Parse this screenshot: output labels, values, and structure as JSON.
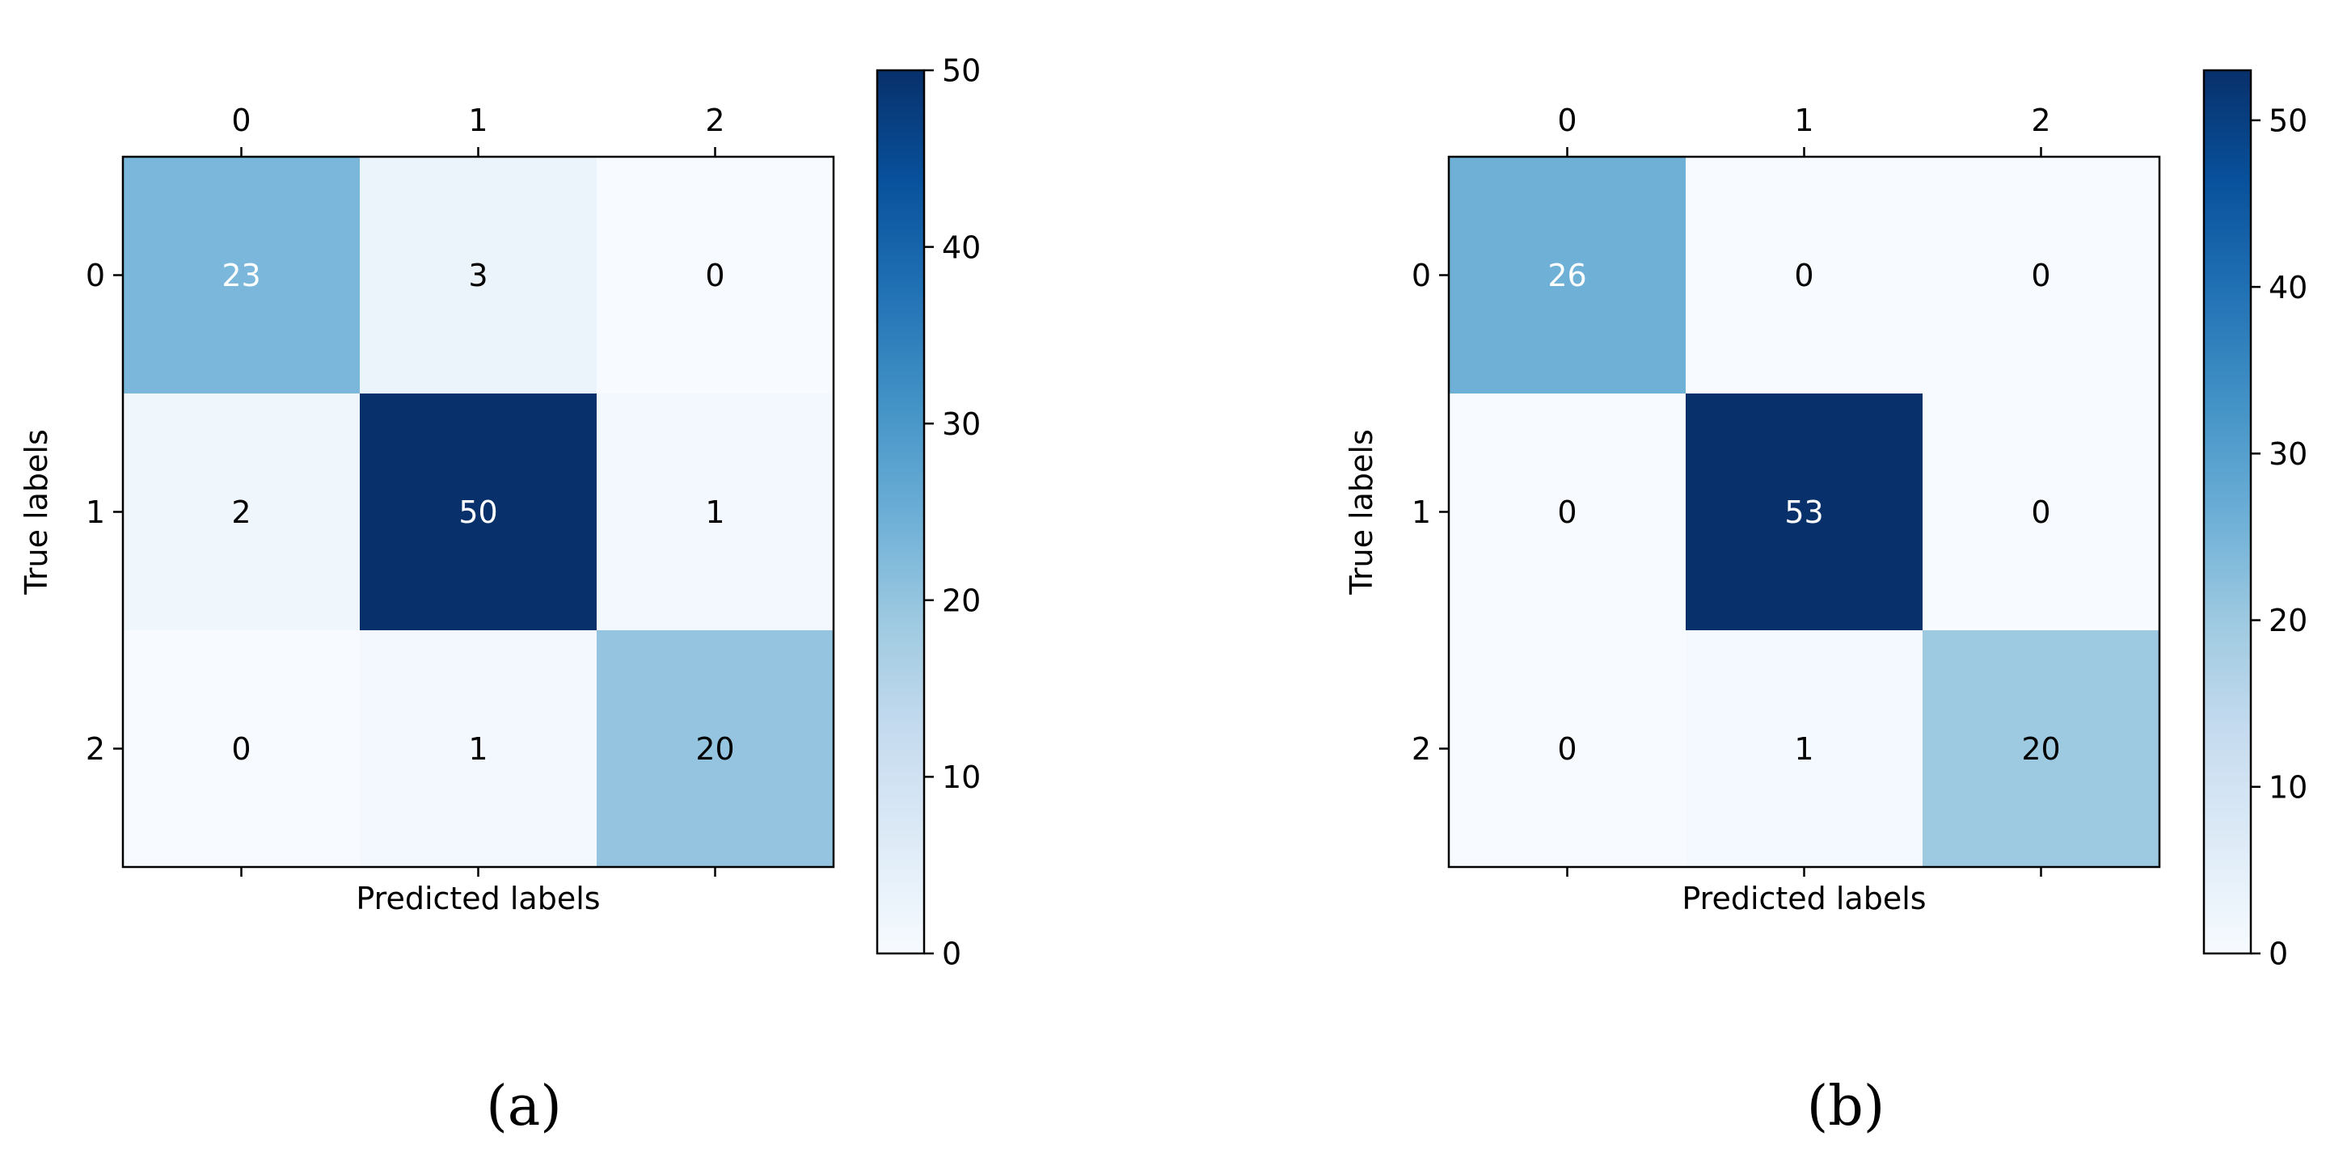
{
  "chart_data": [
    {
      "type": "heatmap",
      "panel_label": "(a)",
      "x_categories": [
        "0",
        "1",
        "2"
      ],
      "y_categories": [
        "0",
        "1",
        "2"
      ],
      "values": [
        [
          23,
          3,
          0
        ],
        [
          2,
          50,
          1
        ],
        [
          0,
          1,
          20
        ]
      ],
      "xlabel": "Predicted labels",
      "ylabel": "True labels",
      "colorbar": {
        "min": 0,
        "max": 50,
        "ticks": [
          0,
          10,
          20,
          30,
          40,
          50
        ]
      },
      "colormap": [
        "#f7fbff",
        "#deebf7",
        "#c6dbef",
        "#9ecae1",
        "#6baed6",
        "#4292c6",
        "#2171b5",
        "#08519c",
        "#08306b"
      ]
    },
    {
      "type": "heatmap",
      "panel_label": "(b)",
      "x_categories": [
        "0",
        "1",
        "2"
      ],
      "y_categories": [
        "0",
        "1",
        "2"
      ],
      "values": [
        [
          26,
          0,
          0
        ],
        [
          0,
          53,
          0
        ],
        [
          0,
          1,
          20
        ]
      ],
      "xlabel": "Predicted labels",
      "ylabel": "True labels",
      "colorbar": {
        "min": 0,
        "max": 53,
        "ticks": [
          0,
          10,
          20,
          30,
          40,
          50
        ]
      },
      "colormap": [
        "#f7fbff",
        "#deebf7",
        "#c6dbef",
        "#9ecae1",
        "#6baed6",
        "#4292c6",
        "#2171b5",
        "#08519c",
        "#08306b"
      ]
    }
  ]
}
